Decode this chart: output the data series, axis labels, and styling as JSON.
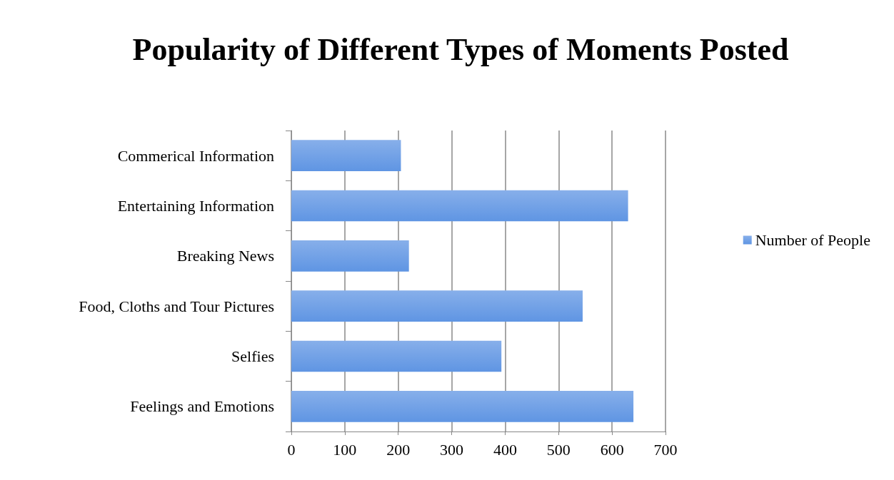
{
  "chart_data": {
    "type": "bar",
    "orientation": "horizontal",
    "title": "Popularity of Different Types of Moments Posted",
    "categories": [
      "Commerical Information",
      "Entertaining Information",
      "Breaking News",
      "Food, Cloths and Tour Pictures",
      "Selfies",
      "Feelings and Emotions"
    ],
    "series": [
      {
        "name": "Number of People",
        "color": "#5f95e3",
        "values": [
          205,
          630,
          220,
          545,
          393,
          640
        ]
      }
    ],
    "xlim": [
      0,
      700
    ],
    "xticks": [
      0,
      100,
      200,
      300,
      400,
      500,
      600,
      700
    ],
    "grid": "x",
    "legend": "right"
  }
}
